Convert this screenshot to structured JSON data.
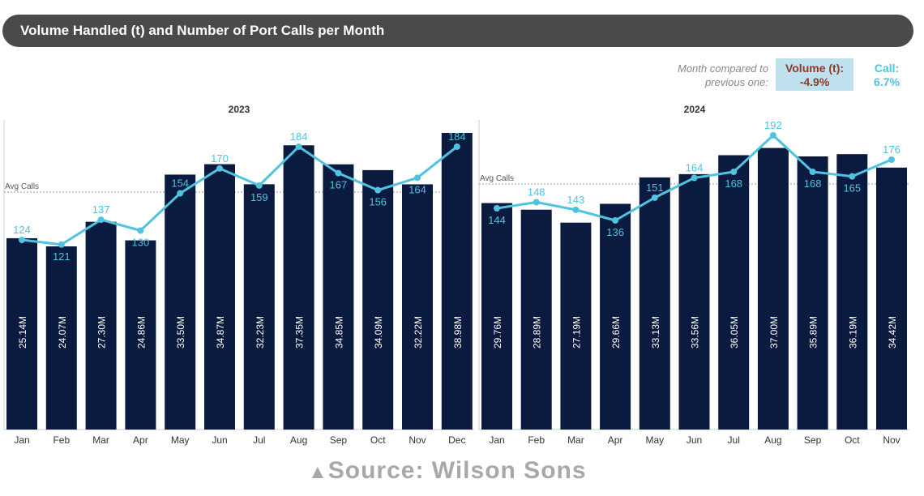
{
  "chart_data": [
    {
      "type": "bar+line",
      "panel": "2023",
      "categories": [
        "Jan",
        "Feb",
        "Mar",
        "Apr",
        "May",
        "Jun",
        "Jul",
        "Aug",
        "Sep",
        "Oct",
        "Nov",
        "Dec"
      ],
      "series": [
        {
          "name": "Volume (t)",
          "values": [
            25.14,
            24.07,
            27.3,
            24.86,
            33.5,
            34.87,
            32.23,
            37.35,
            34.85,
            34.09,
            32.22,
            38.98
          ],
          "labels": [
            "25.14M",
            "24.07M",
            "27.30M",
            "24.86M",
            "33.50M",
            "34.87M",
            "32.23M",
            "37.35M",
            "34.85M",
            "34.09M",
            "32.22M",
            "38.98M"
          ]
        },
        {
          "name": "Calls",
          "values": [
            124,
            121,
            137,
            130,
            154,
            170,
            159,
            184,
            167,
            156,
            164,
            184
          ]
        }
      ],
      "avg_label": "Avg Calls"
    },
    {
      "type": "bar+line",
      "panel": "2024",
      "categories": [
        "Jan",
        "Feb",
        "Mar",
        "Apr",
        "May",
        "Jun",
        "Jul",
        "Aug",
        "Sep",
        "Oct",
        "Nov"
      ],
      "series": [
        {
          "name": "Volume (t)",
          "values": [
            29.76,
            28.89,
            27.19,
            29.66,
            33.13,
            33.56,
            36.05,
            37.0,
            35.89,
            36.19,
            34.42
          ],
          "labels": [
            "29.76M",
            "28.89M",
            "27.19M",
            "29.66M",
            "33.13M",
            "33.56M",
            "36.05M",
            "37.00M",
            "35.89M",
            "36.19M",
            "34.42M"
          ]
        },
        {
          "name": "Calls",
          "values": [
            144,
            148,
            143,
            136,
            151,
            164,
            168,
            192,
            168,
            165,
            176
          ]
        }
      ],
      "avg_label": "Avg Calls"
    }
  ],
  "title": "Volume Handled (t) and Number of Port Calls per Month",
  "comparison": {
    "label_line1": "Month compared to",
    "label_line2": "previous one:",
    "volume_label": "Volume (t):",
    "volume_value": "-4.9%",
    "call_label": "Call:",
    "call_value": "6.7%"
  },
  "source": "Source: Wilson Sons",
  "colors": {
    "bar": "#0b1a3f",
    "line": "#4fc3e0",
    "header": "#4a4a4a"
  }
}
